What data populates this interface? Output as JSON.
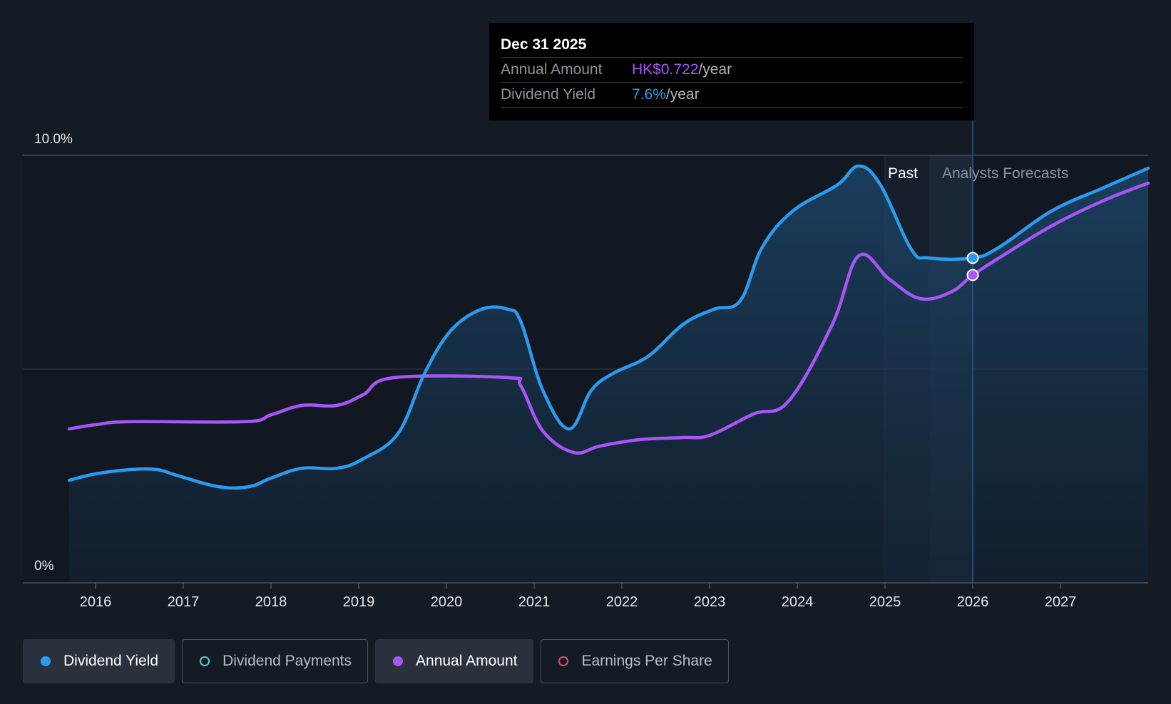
{
  "tooltip": {
    "date": "Dec 31 2025",
    "rows": [
      {
        "label": "Annual Amount",
        "value": "HK$0.722",
        "unit": "/year"
      },
      {
        "label": "Dividend Yield",
        "value": "7.6%",
        "unit": "/year"
      }
    ]
  },
  "regions": {
    "past": "Past",
    "forecast": "Analysts Forecasts"
  },
  "legend": [
    {
      "label": "Dividend Yield",
      "color": "#2b9bf0",
      "active": true,
      "filled": true
    },
    {
      "label": "Dividend Payments",
      "color": "#4fd1c5",
      "active": false,
      "filled": false
    },
    {
      "label": "Annual Amount",
      "color": "#a855f7",
      "active": true,
      "filled": true
    },
    {
      "label": "Earnings Per Share",
      "color": "#e0457b",
      "active": false,
      "filled": false
    }
  ],
  "colors": {
    "yield": "#2b9bf0",
    "amount": "#a855f7",
    "background": "#151b24"
  },
  "chart_data": {
    "type": "line",
    "title": "",
    "xlabel": "",
    "ylabel": "",
    "x_ticks": [
      "2016",
      "2017",
      "2018",
      "2019",
      "2020",
      "2021",
      "2022",
      "2023",
      "2024",
      "2025",
      "2026",
      "2027"
    ],
    "y_ticks": [
      "0%",
      "10.0%"
    ],
    "ylim": [
      0,
      10
    ],
    "xlim": [
      2015.7,
      2028.0
    ],
    "past_forecast_split": 2025.5,
    "highlight_x": 2026.0,
    "series": [
      {
        "name": "Dividend Yield",
        "unit": "%",
        "area": true,
        "points": [
          [
            2015.7,
            2.4
          ],
          [
            2016.0,
            2.55
          ],
          [
            2016.4,
            2.65
          ],
          [
            2016.7,
            2.65
          ],
          [
            2016.95,
            2.5
          ],
          [
            2017.4,
            2.25
          ],
          [
            2017.75,
            2.25
          ],
          [
            2018.0,
            2.45
          ],
          [
            2018.35,
            2.68
          ],
          [
            2018.75,
            2.68
          ],
          [
            2019.05,
            2.9
          ],
          [
            2019.45,
            3.5
          ],
          [
            2019.75,
            4.9
          ],
          [
            2020.05,
            5.9
          ],
          [
            2020.4,
            6.4
          ],
          [
            2020.7,
            6.4
          ],
          [
            2020.85,
            6.1
          ],
          [
            2021.1,
            4.5
          ],
          [
            2021.4,
            3.6
          ],
          [
            2021.65,
            4.5
          ],
          [
            2021.9,
            4.9
          ],
          [
            2022.3,
            5.3
          ],
          [
            2022.7,
            6.05
          ],
          [
            2023.05,
            6.4
          ],
          [
            2023.35,
            6.6
          ],
          [
            2023.6,
            7.85
          ],
          [
            2023.95,
            8.7
          ],
          [
            2024.45,
            9.3
          ],
          [
            2024.7,
            9.75
          ],
          [
            2024.95,
            9.3
          ],
          [
            2025.3,
            7.8
          ],
          [
            2025.5,
            7.6
          ],
          [
            2026.0,
            7.6
          ],
          [
            2026.3,
            7.85
          ],
          [
            2026.9,
            8.7
          ],
          [
            2027.5,
            9.25
          ],
          [
            2028.0,
            9.7
          ]
        ]
      },
      {
        "name": "Annual Amount",
        "unit": "HK$",
        "area": false,
        "points": [
          [
            2015.7,
            3.6
          ],
          [
            2016.0,
            3.7
          ],
          [
            2016.4,
            3.77
          ],
          [
            2017.7,
            3.77
          ],
          [
            2018.0,
            3.93
          ],
          [
            2018.35,
            4.15
          ],
          [
            2018.75,
            4.15
          ],
          [
            2019.05,
            4.4
          ],
          [
            2019.4,
            4.8
          ],
          [
            2020.7,
            4.8
          ],
          [
            2020.85,
            4.6
          ],
          [
            2021.1,
            3.55
          ],
          [
            2021.45,
            3.05
          ],
          [
            2021.75,
            3.2
          ],
          [
            2022.2,
            3.35
          ],
          [
            2022.7,
            3.4
          ],
          [
            2023.0,
            3.45
          ],
          [
            2023.5,
            3.95
          ],
          [
            2023.9,
            4.25
          ],
          [
            2024.4,
            6.05
          ],
          [
            2024.7,
            7.65
          ],
          [
            2025.05,
            7.1
          ],
          [
            2025.4,
            6.65
          ],
          [
            2025.75,
            6.8
          ],
          [
            2026.0,
            7.2
          ],
          [
            2026.3,
            7.6
          ],
          [
            2026.9,
            8.35
          ],
          [
            2027.5,
            8.95
          ],
          [
            2028.0,
            9.35
          ]
        ]
      }
    ]
  }
}
